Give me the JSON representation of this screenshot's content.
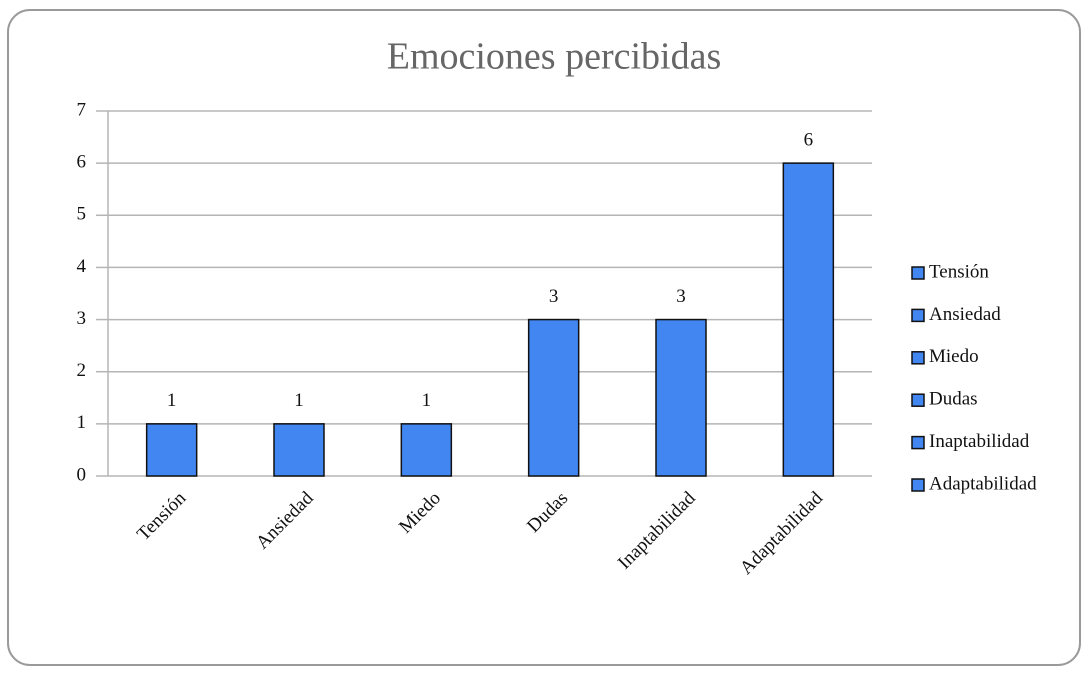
{
  "chart_data": {
    "type": "bar",
    "title": "Emociones percibidas",
    "categories": [
      "Tensión",
      "Ansiedad",
      "Miedo",
      "Dudas",
      "Inaptabilidad",
      "Adaptabilidad"
    ],
    "values": [
      1,
      1,
      1,
      3,
      3,
      6
    ],
    "color": "#4286f2",
    "ylim": [
      0,
      7
    ],
    "yticks": [
      0,
      1,
      2,
      3,
      4,
      5,
      6,
      7
    ],
    "grid": true,
    "legend": "right",
    "data_labels": true
  }
}
